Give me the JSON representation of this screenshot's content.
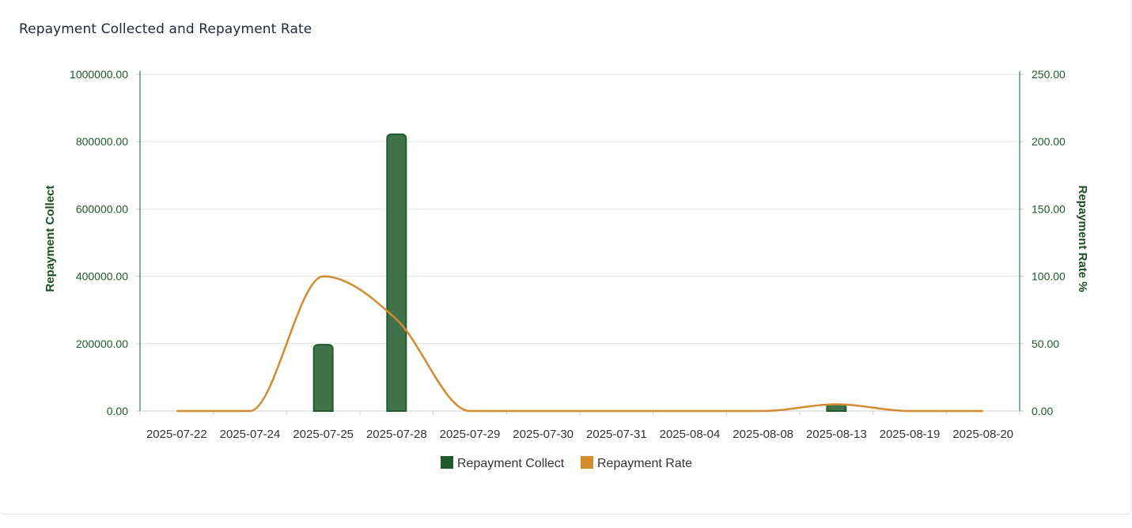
{
  "header": {
    "title": "Repayment Collected and Repayment Rate"
  },
  "chart_data": {
    "type": "bar",
    "title": "Repayment Collected and Repayment Rate",
    "categories": [
      "2025-07-22",
      "2025-07-24",
      "2025-07-25",
      "2025-07-28",
      "2025-07-29",
      "2025-07-30",
      "2025-07-31",
      "2025-08-04",
      "2025-08-08",
      "2025-08-13",
      "2025-08-19",
      "2025-08-20"
    ],
    "series": [
      {
        "name": "Repayment Collect",
        "type": "bar",
        "axis": "left",
        "color": "#1e5a2d",
        "values": [
          0,
          0,
          197000,
          822000,
          0,
          0,
          0,
          0,
          0,
          20000,
          0,
          0
        ]
      },
      {
        "name": "Repayment Rate",
        "type": "line",
        "smooth": true,
        "axis": "right",
        "color": "#d68a2e",
        "values": [
          0,
          0,
          100,
          68,
          0,
          0,
          0,
          0,
          0,
          5,
          0,
          0
        ]
      }
    ],
    "y_left": {
      "label": "Repayment Collect",
      "range": [
        0,
        1000000
      ],
      "ticks": [
        "0.00",
        "200000.00",
        "400000.00",
        "600000.00",
        "800000.00",
        "1000000.00"
      ],
      "tick_values": [
        0,
        200000,
        400000,
        600000,
        800000,
        1000000
      ]
    },
    "y_right": {
      "label": "Repayment Rate %",
      "range": [
        0,
        250
      ],
      "ticks": [
        "0.00",
        "50.00",
        "100.00",
        "150.00",
        "200.00",
        "250.00"
      ],
      "tick_values": [
        0,
        50,
        100,
        150,
        200,
        250
      ]
    },
    "grid": true,
    "legend": {
      "position": "bottom",
      "items": [
        "Repayment Collect",
        "Repayment Rate"
      ]
    }
  }
}
